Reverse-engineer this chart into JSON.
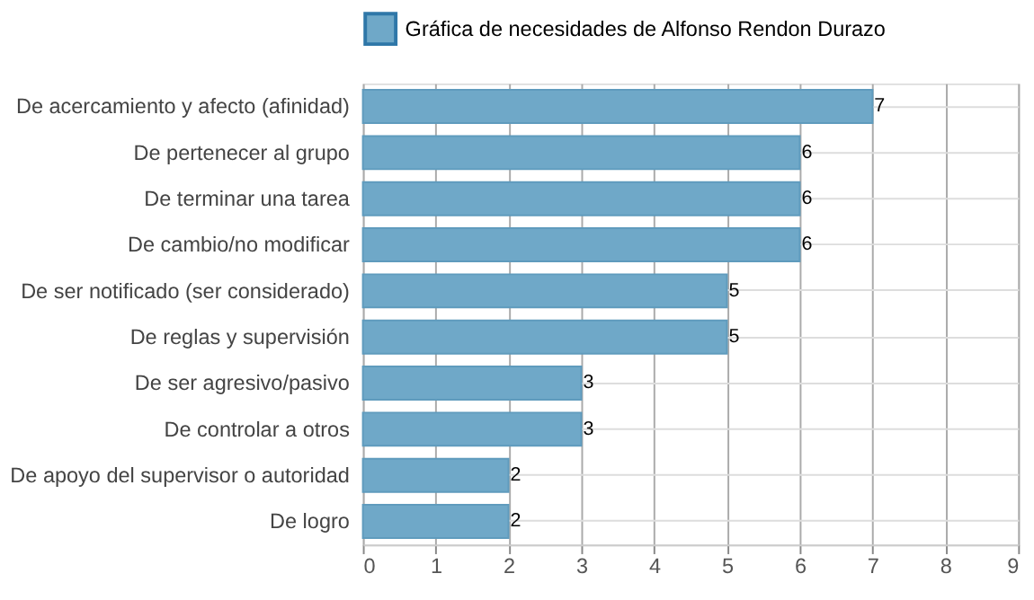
{
  "chart_data": {
    "type": "bar",
    "orientation": "horizontal",
    "categories": [
      "De acercamiento y afecto (afinidad)",
      "De pertenecer al grupo",
      "De terminar una tarea",
      "De cambio/no modificar",
      "De ser notificado (ser considerado)",
      "De reglas y supervisión",
      "De ser agresivo/pasivo",
      "De controlar a otros",
      "De apoyo del supervisor o autoridad",
      "De logro"
    ],
    "series": [
      {
        "name": "Gráfica de necesidades de Alfonso Rendon Durazo",
        "color": "#6fa8c8",
        "values": [
          7,
          6,
          6,
          6,
          5,
          5,
          3,
          3,
          2,
          2
        ]
      }
    ],
    "xlim": [
      0,
      9
    ],
    "xticks": [
      0,
      1,
      2,
      3,
      4,
      5,
      6,
      7,
      8,
      9
    ],
    "grid": true,
    "legend": "top",
    "data_labels": true
  }
}
